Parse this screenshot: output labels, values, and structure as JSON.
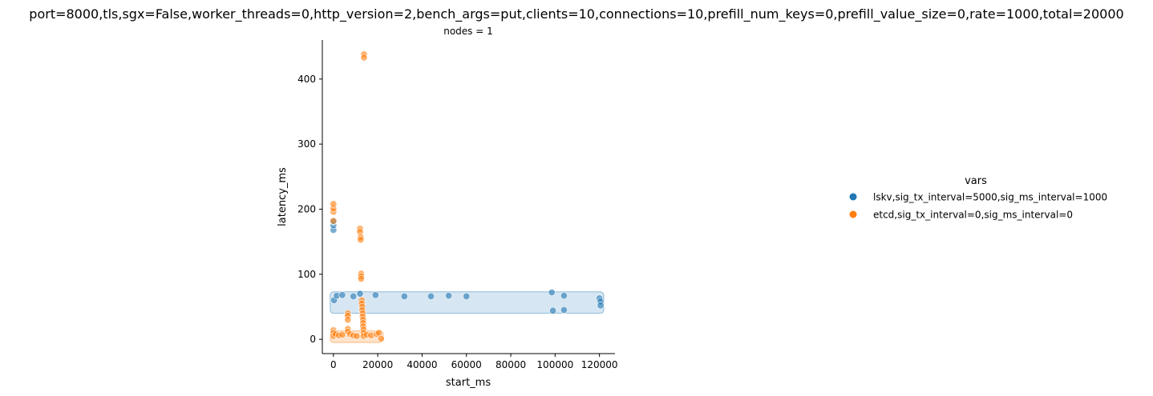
{
  "chart_data": {
    "type": "scatter",
    "title": "port=8000,tls,sgx=False,worker_threads=0,http_version=2,bench_args=put,clients=10,connections=10,prefill_num_keys=0,prefill_value_size=0,rate=1000,total=20000",
    "facet_title": "nodes = 1",
    "xlabel": "start_ms",
    "ylabel": "latency_ms",
    "xlim": [
      -5000,
      127000
    ],
    "ylim": [
      -22,
      460
    ],
    "x_ticks": [
      0,
      20000,
      40000,
      60000,
      80000,
      100000,
      120000
    ],
    "y_ticks": [
      0,
      100,
      200,
      300,
      400
    ],
    "grid": false,
    "legend": {
      "title": "vars",
      "placement": "right"
    },
    "series": [
      {
        "name": "lskv,sig_tx_interval=5000,sig_ms_interval=1000",
        "color": "#1f77b4",
        "band": {
          "x_range": [
            0,
            120500
          ],
          "y_low": 45,
          "y_high": 68,
          "fill": "#d6e6f2"
        },
        "points": [
          [
            0,
            168
          ],
          [
            0,
            175
          ],
          [
            0,
            181
          ],
          [
            300,
            60
          ],
          [
            1500,
            67
          ],
          [
            4000,
            68
          ],
          [
            9000,
            66
          ],
          [
            12000,
            70
          ],
          [
            19000,
            68
          ],
          [
            32000,
            66
          ],
          [
            44000,
            66
          ],
          [
            52000,
            67
          ],
          [
            60000,
            66
          ],
          [
            98500,
            72
          ],
          [
            99000,
            44
          ],
          [
            104000,
            67
          ],
          [
            104000,
            45
          ],
          [
            120000,
            63
          ],
          [
            120500,
            58
          ],
          [
            120500,
            52
          ]
        ]
      },
      {
        "name": "etcd,sig_tx_interval=0,sig_ms_interval=0",
        "color": "#ff7f0e",
        "band": {
          "x_range": [
            0,
            21000
          ],
          "y_low": 0,
          "y_high": 8,
          "fill": "#fde3cc"
        },
        "points": [
          [
            0,
            196
          ],
          [
            0,
            201
          ],
          [
            0,
            208
          ],
          [
            0,
            182
          ],
          [
            0,
            14
          ],
          [
            0,
            10
          ],
          [
            0,
            5
          ],
          [
            1000,
            8
          ],
          [
            2500,
            6
          ],
          [
            4000,
            7
          ],
          [
            6500,
            40
          ],
          [
            6500,
            36
          ],
          [
            6500,
            30
          ],
          [
            6500,
            16
          ],
          [
            6500,
            12
          ],
          [
            7500,
            8
          ],
          [
            9000,
            6
          ],
          [
            10500,
            5
          ],
          [
            12000,
            170
          ],
          [
            12000,
            165
          ],
          [
            12300,
            157
          ],
          [
            12300,
            153
          ],
          [
            12500,
            101
          ],
          [
            12500,
            97
          ],
          [
            12500,
            93
          ],
          [
            12800,
            60
          ],
          [
            12800,
            55
          ],
          [
            13000,
            50
          ],
          [
            13000,
            45
          ],
          [
            13200,
            40
          ],
          [
            13200,
            35
          ],
          [
            13400,
            30
          ],
          [
            13400,
            25
          ],
          [
            13400,
            20
          ],
          [
            13600,
            15
          ],
          [
            13600,
            10
          ],
          [
            13600,
            5
          ],
          [
            13800,
            438
          ],
          [
            13800,
            433
          ],
          [
            15000,
            7
          ],
          [
            17000,
            6
          ],
          [
            19500,
            8
          ],
          [
            20500,
            10
          ],
          [
            21500,
            1
          ]
        ]
      }
    ]
  }
}
